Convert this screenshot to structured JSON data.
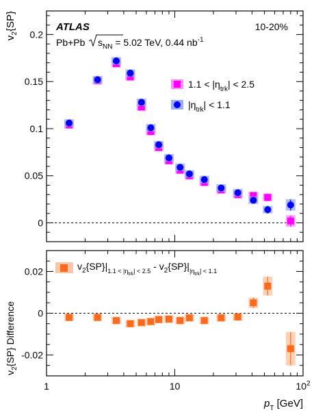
{
  "chart_data": [
    {
      "type": "scatter",
      "panel": "top",
      "experiment": "ATLAS",
      "collision_system": "Pb+Pb",
      "sqrt_label": "s",
      "sqrt_sub": "NN",
      "energy_text": " = 5.02 TeV, 0.44 nb",
      "lumi_exp": "-1",
      "centrality": "10-20%",
      "ylabel": "v",
      "ylabel_sub": "2",
      "ylabel_rest": "{SP}",
      "xscale": "log",
      "xlim": [
        1,
        100
      ],
      "ylim": [
        -0.02,
        0.225
      ],
      "yticks": [
        "0",
        "0.05",
        "0.1",
        "0.15",
        "0.2"
      ],
      "reference_line": 0,
      "legend_position": "top-right",
      "series": [
        {
          "name": "1.1 < |η_trk| < 2.5",
          "legend_main": "1.1 < |η",
          "legend_sub": "trk",
          "legend_rest": "| < 2.5",
          "color": "#ff00ff",
          "box_color": "#ff8cff",
          "marker": "square",
          "x": [
            1.5,
            2.5,
            3.5,
            4.5,
            5.5,
            6.5,
            7.5,
            9,
            11,
            13,
            17,
            23,
            31,
            41,
            53,
            80
          ],
          "y": [
            0.104,
            0.151,
            0.169,
            0.155,
            0.123,
            0.097,
            0.08,
            0.066,
            0.056,
            0.05,
            0.043,
            0.035,
            0.03,
            0.029,
            0.027,
            0.002
          ],
          "yerr": [
            0.0015,
            0.0015,
            0.0015,
            0.0015,
            0.0015,
            0.0015,
            0.0015,
            0.0015,
            0.0015,
            0.0015,
            0.0015,
            0.0015,
            0.002,
            0.003,
            0.004,
            0.006
          ]
        },
        {
          "name": "|η_trk| < 1.1",
          "legend_main": "|η",
          "legend_sub": "trk",
          "legend_rest": "| < 1.1",
          "color": "#0000ff",
          "box_color": "#9aaef0",
          "marker": "circle",
          "x": [
            1.5,
            2.5,
            3.5,
            4.5,
            5.5,
            6.5,
            7.5,
            9,
            11,
            13,
            17,
            23,
            31,
            41,
            53,
            80
          ],
          "y": [
            0.106,
            0.152,
            0.172,
            0.159,
            0.128,
            0.101,
            0.083,
            0.069,
            0.059,
            0.052,
            0.046,
            0.037,
            0.032,
            0.024,
            0.014,
            0.019
          ],
          "yerr": [
            0.0015,
            0.0015,
            0.0015,
            0.0015,
            0.0015,
            0.0015,
            0.0015,
            0.0015,
            0.0015,
            0.0015,
            0.0015,
            0.0015,
            0.002,
            0.003,
            0.004,
            0.006
          ]
        }
      ]
    },
    {
      "type": "scatter",
      "panel": "bottom",
      "ylabel": "v",
      "ylabel_sub": "2",
      "ylabel_rest": "{SP} Difference",
      "xlabel": "p",
      "xlabel_sub": "T",
      "xlabel_rest": " [GeV]",
      "xscale": "log",
      "xlim": [
        1,
        100
      ],
      "ylim": [
        -0.03,
        0.03
      ],
      "xticks": [
        "1",
        "10",
        "10"
      ],
      "xticks_exp": [
        "",
        "",
        "2"
      ],
      "yticks": [
        "-0.02",
        "0",
        "0.02"
      ],
      "reference_line": 0,
      "legend_position": "top-left",
      "series": [
        {
          "name": "v2{SP}|1.1<|η_trk|<2.5 - v2{SP}||η_trk|<1.1",
          "legend_a": "v",
          "legend_a_sub": "2",
          "legend_b": "{SP}|",
          "legend_b_sub": "1.1 < |η",
          "legend_b_subsub": "trk",
          "legend_b_sub_rest": "| < 2.5",
          "legend_c": " - v",
          "legend_c_sub": "2",
          "legend_d": "{SP}|",
          "legend_d_sub": "|η",
          "legend_d_subsub": "trk",
          "legend_d_sub_rest": "| < 1.1",
          "color": "#ff6a1a",
          "box_color": "#f9c7a5",
          "marker": "square",
          "x": [
            1.5,
            2.5,
            3.5,
            4.5,
            5.5,
            6.5,
            7.5,
            9,
            11,
            13,
            17,
            23,
            31,
            41,
            53,
            80
          ],
          "y": [
            -0.002,
            -0.002,
            -0.0035,
            -0.005,
            -0.0045,
            -0.004,
            -0.003,
            -0.0028,
            -0.0035,
            -0.0022,
            -0.0035,
            -0.0022,
            -0.0018,
            0.005,
            0.013,
            -0.017
          ],
          "yerr": [
            0.0004,
            0.0004,
            0.0004,
            0.0004,
            0.0004,
            0.0004,
            0.0004,
            0.0004,
            0.0004,
            0.0004,
            0.0004,
            0.0004,
            0.0008,
            0.0025,
            0.0045,
            0.008
          ]
        }
      ]
    }
  ]
}
